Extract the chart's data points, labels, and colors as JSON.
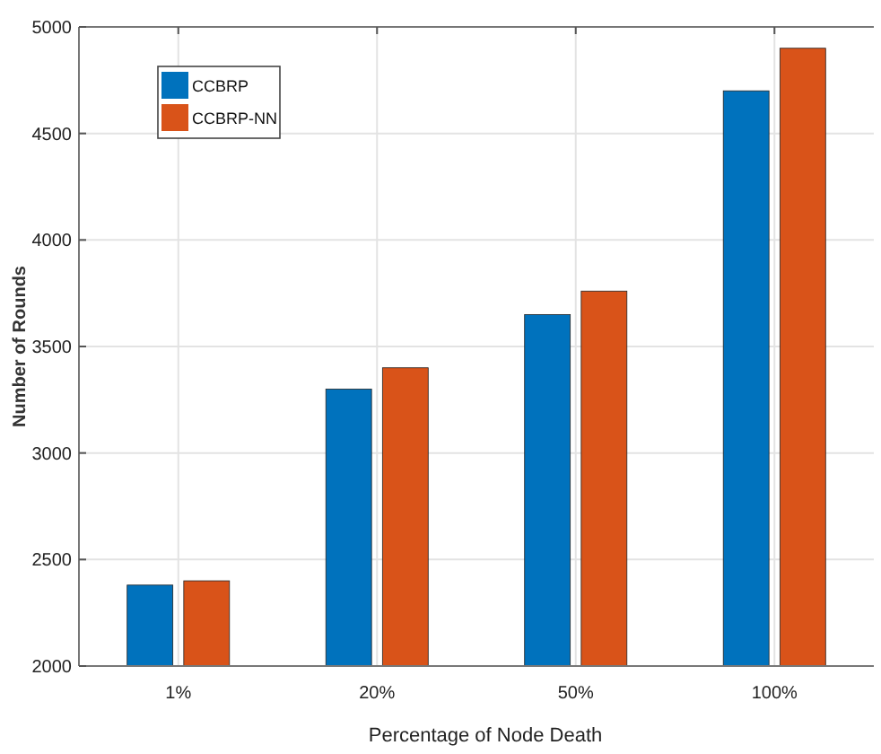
{
  "chart_data": {
    "type": "bar",
    "xlabel": "Percentage of Node Death",
    "ylabel": "Number of Rounds",
    "categories": [
      "1%",
      "20%",
      "50%",
      "100%"
    ],
    "series": [
      {
        "name": "CCBRP",
        "color": "#0072bd",
        "values": [
          2380,
          3300,
          3650,
          4700
        ]
      },
      {
        "name": "CCBRP-NN",
        "color": "#d95319",
        "values": [
          2400,
          3400,
          3760,
          4900
        ]
      }
    ],
    "ylim": [
      2000,
      5000
    ],
    "yticks": [
      2000,
      2500,
      3000,
      3500,
      4000,
      4500,
      5000
    ],
    "grid": true,
    "legend": "top left"
  }
}
